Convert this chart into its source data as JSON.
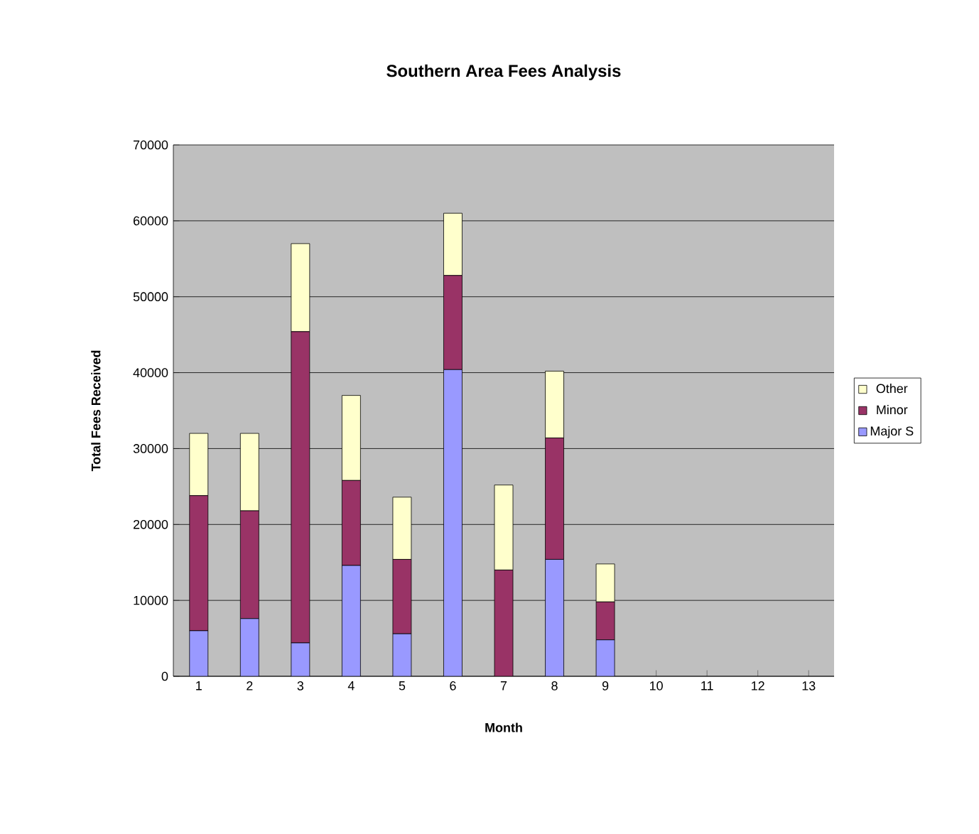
{
  "chart_data": {
    "type": "bar",
    "title": "Southern Area Fees Analysis",
    "xlabel": "Month",
    "ylabel": "Total Fees Received",
    "categories": [
      "1",
      "2",
      "3",
      "4",
      "5",
      "6",
      "7",
      "8",
      "9",
      "10",
      "11",
      "12",
      "13"
    ],
    "stacked": true,
    "series": [
      {
        "name": "Major S",
        "color": "#9999ff",
        "values": [
          6000,
          7600,
          4400,
          14600,
          5600,
          40400,
          0,
          15400,
          4800,
          null,
          null,
          null,
          null
        ]
      },
      {
        "name": "Minor",
        "color": "#993366",
        "values": [
          17800,
          14200,
          41000,
          11200,
          9800,
          12400,
          14000,
          16000,
          5000,
          null,
          null,
          null,
          null
        ]
      },
      {
        "name": "Other",
        "color": "#ffffcc",
        "values": [
          8200,
          10200,
          11600,
          11200,
          8200,
          8200,
          11200,
          8800,
          5000,
          null,
          null,
          null,
          null
        ]
      }
    ],
    "ylim": [
      0,
      70000
    ],
    "yticks": [
      0,
      10000,
      20000,
      30000,
      40000,
      50000,
      60000,
      70000
    ],
    "grid": "y",
    "legend": "right"
  }
}
